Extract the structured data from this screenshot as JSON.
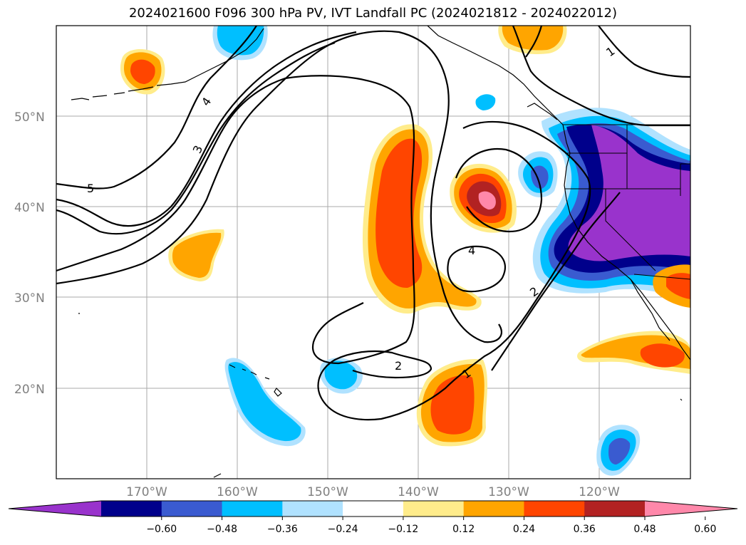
{
  "title": "2024021600 F096 300 hPa PV, IVT Landfall PC (2024021812 - 2024022012)",
  "map": {
    "projection": "Plate Carree",
    "lat_range": [
      10,
      60
    ],
    "lon_range": [
      -180,
      -110
    ],
    "lat_labels": [
      "50°N",
      "40°N",
      "30°N",
      "20°N"
    ],
    "lon_labels": [
      "170°W",
      "160°W",
      "150°W",
      "140°W",
      "130°W",
      "120°W"
    ],
    "gridlines": true
  },
  "pv_contour_labels": [
    "5",
    "4",
    "3",
    "4",
    "2",
    "2",
    "1",
    "1"
  ],
  "colorbar": {
    "ticks": [
      "−0.60",
      "−0.48",
      "−0.36",
      "−0.24",
      "−0.12",
      "0.12",
      "0.24",
      "0.36",
      "0.48",
      "0.60"
    ],
    "colors": [
      "#9933cc",
      "#00008b",
      "#3a5bd0",
      "#00bfff",
      "#b0e2ff",
      "#ffffff",
      "#ffec8b",
      "#ffa500",
      "#ff4500",
      "#b22222",
      "#ff88aa"
    ],
    "extend": "both"
  }
}
